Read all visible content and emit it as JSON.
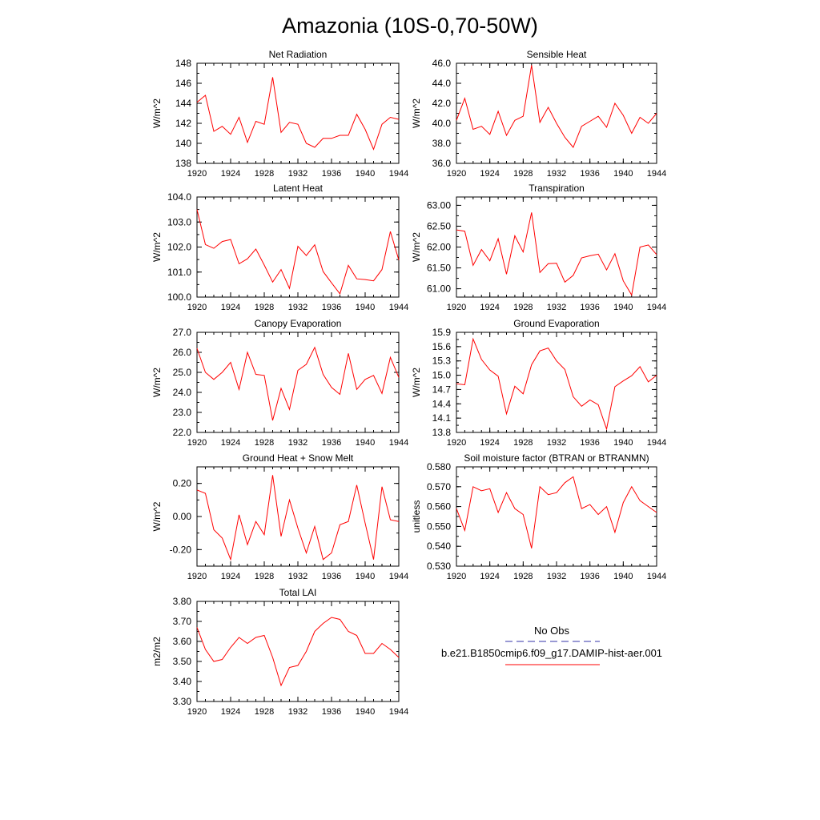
{
  "title": "Amazonia (10S-0,70-50W)",
  "colors": {
    "model_line": "#ff0000",
    "obs_line": "#3333aa",
    "axis": "#000000"
  },
  "legend": {
    "obs_label": "No Obs",
    "model_label": "b.e21.B1850cmip6.f09_g17.DAMIP-hist-aer.001"
  },
  "chart_data": [
    {
      "type": "line",
      "title": "Net Radiation",
      "ylabel": "W/m^2",
      "xlim": [
        1920,
        1944
      ],
      "ylim": [
        138,
        148
      ],
      "xticks": [
        "1920",
        "1924",
        "1928",
        "1932",
        "1936",
        "1940",
        "1944"
      ],
      "yticks": [
        "138",
        "140",
        "142",
        "144",
        "146",
        "148"
      ],
      "x": [
        1920,
        1921,
        1922,
        1923,
        1924,
        1925,
        1926,
        1927,
        1928,
        1929,
        1930,
        1931,
        1932,
        1933,
        1934,
        1935,
        1936,
        1937,
        1938,
        1939,
        1940,
        1941,
        1942,
        1943,
        1944
      ],
      "values": [
        144.1,
        144.8,
        141.2,
        141.7,
        140.9,
        142.6,
        140.1,
        142.2,
        141.9,
        146.6,
        141.1,
        142.1,
        141.9,
        140.0,
        139.6,
        140.5,
        140.5,
        140.8,
        140.8,
        142.9,
        141.4,
        139.4,
        141.9,
        142.6,
        142.4
      ]
    },
    {
      "type": "line",
      "title": "Sensible Heat",
      "ylabel": "W/m^2",
      "xlim": [
        1920,
        1944
      ],
      "ylim": [
        36,
        46
      ],
      "xticks": [
        "1920",
        "1924",
        "1928",
        "1932",
        "1936",
        "1940",
        "1944"
      ],
      "yticks": [
        "36.0",
        "38.0",
        "40.0",
        "42.0",
        "44.0",
        "46.0"
      ],
      "x": [
        1920,
        1921,
        1922,
        1923,
        1924,
        1925,
        1926,
        1927,
        1928,
        1929,
        1930,
        1931,
        1932,
        1933,
        1934,
        1935,
        1936,
        1937,
        1938,
        1939,
        1940,
        1941,
        1942,
        1943,
        1944
      ],
      "values": [
        40.3,
        42.5,
        39.4,
        39.7,
        38.9,
        41.2,
        38.8,
        40.3,
        40.7,
        45.8,
        40.1,
        41.6,
        40.0,
        38.6,
        37.6,
        39.7,
        40.2,
        40.7,
        39.6,
        42.0,
        40.8,
        39.0,
        40.6,
        40.0,
        41.0
      ]
    },
    {
      "type": "line",
      "title": "Latent Heat",
      "ylabel": "W/m^2",
      "xlim": [
        1920,
        1944
      ],
      "ylim": [
        100,
        104
      ],
      "xticks": [
        "1920",
        "1924",
        "1928",
        "1932",
        "1936",
        "1940",
        "1944"
      ],
      "yticks": [
        "100.0",
        "101.0",
        "102.0",
        "103.0",
        "104.0"
      ],
      "x": [
        1920,
        1921,
        1922,
        1923,
        1924,
        1925,
        1926,
        1927,
        1928,
        1929,
        1930,
        1931,
        1932,
        1933,
        1934,
        1935,
        1936,
        1937,
        1938,
        1939,
        1940,
        1941,
        1942,
        1943,
        1944
      ],
      "values": [
        103.5,
        102.1,
        101.95,
        102.22,
        102.3,
        101.33,
        101.53,
        101.92,
        101.28,
        100.6,
        101.1,
        100.35,
        102.03,
        101.66,
        102.09,
        101.02,
        100.57,
        100.13,
        101.27,
        100.73,
        100.7,
        100.65,
        101.1,
        102.62,
        101.48
      ]
    },
    {
      "type": "line",
      "title": "Transpiration",
      "ylabel": "W/m^2",
      "xlim": [
        1920,
        1944
      ],
      "ylim": [
        60.8,
        63.2
      ],
      "xticks": [
        "1920",
        "1924",
        "1928",
        "1932",
        "1936",
        "1940",
        "1944"
      ],
      "yticks": [
        "61.00",
        "61.50",
        "62.00",
        "62.50",
        "63.00"
      ],
      "x": [
        1920,
        1921,
        1922,
        1923,
        1924,
        1925,
        1926,
        1927,
        1928,
        1929,
        1930,
        1931,
        1932,
        1933,
        1934,
        1935,
        1936,
        1937,
        1938,
        1939,
        1940,
        1941,
        1942,
        1943,
        1944
      ],
      "values": [
        62.41,
        62.38,
        61.56,
        61.94,
        61.67,
        62.2,
        61.35,
        62.27,
        61.88,
        62.83,
        61.39,
        61.6,
        61.61,
        61.16,
        61.32,
        61.74,
        61.79,
        61.83,
        61.45,
        61.84,
        61.19,
        60.85,
        62.0,
        62.05,
        61.82
      ]
    },
    {
      "type": "line",
      "title": "Canopy Evaporation",
      "ylabel": "W/m^2",
      "xlim": [
        1920,
        1944
      ],
      "ylim": [
        22,
        27
      ],
      "xticks": [
        "1920",
        "1924",
        "1928",
        "1932",
        "1936",
        "1940",
        "1944"
      ],
      "yticks": [
        "22.0",
        "23.0",
        "24.0",
        "25.0",
        "26.0",
        "27.0"
      ],
      "x": [
        1920,
        1921,
        1922,
        1923,
        1924,
        1925,
        1926,
        1927,
        1928,
        1929,
        1930,
        1931,
        1932,
        1933,
        1934,
        1935,
        1936,
        1937,
        1938,
        1939,
        1940,
        1941,
        1942,
        1943,
        1944
      ],
      "values": [
        26.2,
        25.0,
        24.65,
        25.0,
        25.5,
        24.15,
        26.0,
        24.9,
        24.85,
        22.6,
        24.2,
        23.15,
        25.1,
        25.4,
        26.25,
        24.9,
        24.25,
        23.9,
        25.95,
        24.15,
        24.65,
        24.85,
        23.95,
        25.75,
        24.75
      ]
    },
    {
      "type": "line",
      "title": "Ground Evaporation",
      "ylabel": "W/m^2",
      "xlim": [
        1920,
        1944
      ],
      "ylim": [
        13.8,
        15.9
      ],
      "xticks": [
        "1920",
        "1924",
        "1928",
        "1932",
        "1936",
        "1940",
        "1944"
      ],
      "yticks": [
        "13.8",
        "14.1",
        "14.4",
        "14.7",
        "15.0",
        "15.3",
        "15.6",
        "15.9"
      ],
      "x": [
        1920,
        1921,
        1922,
        1923,
        1924,
        1925,
        1926,
        1927,
        1928,
        1929,
        1930,
        1931,
        1932,
        1933,
        1934,
        1935,
        1936,
        1937,
        1938,
        1939,
        1940,
        1941,
        1942,
        1943,
        1944
      ],
      "values": [
        14.82,
        14.8,
        15.76,
        15.33,
        15.11,
        14.98,
        14.19,
        14.77,
        14.61,
        15.22,
        15.51,
        15.57,
        15.3,
        15.12,
        14.55,
        14.35,
        14.48,
        14.38,
        13.87,
        14.76,
        14.88,
        14.99,
        15.18,
        14.86,
        15.0
      ]
    },
    {
      "type": "line",
      "title": "Ground Heat + Snow Melt",
      "ylabel": "W/m^2",
      "xlim": [
        1920,
        1944
      ],
      "ylim": [
        -0.3,
        0.3
      ],
      "xticks": [
        "1920",
        "1924",
        "1928",
        "1932",
        "1936",
        "1940",
        "1944"
      ],
      "yticks": [
        "-0.20",
        "0.00",
        "0.20"
      ],
      "x": [
        1920,
        1921,
        1922,
        1923,
        1924,
        1925,
        1926,
        1927,
        1928,
        1929,
        1930,
        1931,
        1932,
        1933,
        1934,
        1935,
        1936,
        1937,
        1938,
        1939,
        1940,
        1941,
        1942,
        1943,
        1944
      ],
      "values": [
        0.16,
        0.14,
        -0.08,
        -0.13,
        -0.26,
        0.01,
        -0.17,
        -0.03,
        -0.11,
        0.25,
        -0.12,
        0.1,
        -0.07,
        -0.22,
        -0.06,
        -0.26,
        -0.22,
        -0.05,
        -0.03,
        0.19,
        -0.04,
        -0.26,
        0.18,
        -0.02,
        -0.03
      ]
    },
    {
      "type": "line",
      "title": "Soil moisture factor (BTRAN or BTRANMN)",
      "ylabel": "unitless",
      "xlim": [
        1920,
        1944
      ],
      "ylim": [
        0.53,
        0.58
      ],
      "xticks": [
        "1920",
        "1924",
        "1928",
        "1932",
        "1936",
        "1940",
        "1944"
      ],
      "yticks": [
        "0.530",
        "0.540",
        "0.550",
        "0.560",
        "0.570",
        "0.580"
      ],
      "x": [
        1920,
        1921,
        1922,
        1923,
        1924,
        1925,
        1926,
        1927,
        1928,
        1929,
        1930,
        1931,
        1932,
        1933,
        1934,
        1935,
        1936,
        1937,
        1938,
        1939,
        1940,
        1941,
        1942,
        1943,
        1944
      ],
      "values": [
        0.559,
        0.548,
        0.57,
        0.568,
        0.569,
        0.557,
        0.567,
        0.559,
        0.556,
        0.539,
        0.57,
        0.566,
        0.567,
        0.572,
        0.575,
        0.559,
        0.561,
        0.556,
        0.56,
        0.547,
        0.562,
        0.57,
        0.563,
        0.56,
        0.557
      ]
    },
    {
      "type": "line",
      "title": "Total LAI",
      "ylabel": "m2/m2",
      "xlim": [
        1920,
        1944
      ],
      "ylim": [
        3.3,
        3.8
      ],
      "xticks": [
        "1920",
        "1924",
        "1928",
        "1932",
        "1936",
        "1940",
        "1944"
      ],
      "yticks": [
        "3.30",
        "3.40",
        "3.50",
        "3.60",
        "3.70",
        "3.80"
      ],
      "x": [
        1920,
        1921,
        1922,
        1923,
        1924,
        1925,
        1926,
        1927,
        1928,
        1929,
        1930,
        1931,
        1932,
        1933,
        1934,
        1935,
        1936,
        1937,
        1938,
        1939,
        1940,
        1941,
        1942,
        1943,
        1944
      ],
      "values": [
        3.67,
        3.56,
        3.5,
        3.51,
        3.57,
        3.62,
        3.59,
        3.62,
        3.63,
        3.52,
        3.38,
        3.47,
        3.48,
        3.55,
        3.65,
        3.69,
        3.72,
        3.71,
        3.65,
        3.63,
        3.54,
        3.54,
        3.59,
        3.56,
        3.52
      ]
    }
  ]
}
